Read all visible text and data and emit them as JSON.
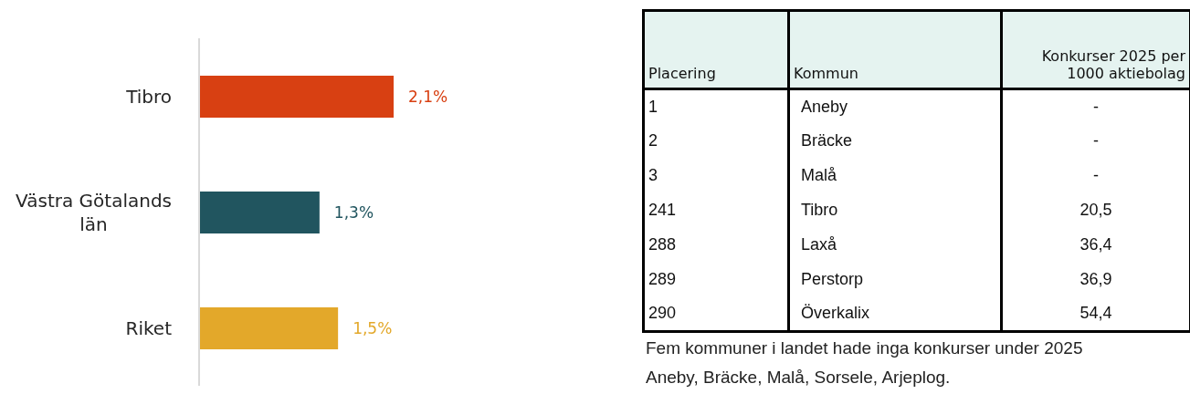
{
  "chart_data": [
    {
      "type": "bar",
      "orientation": "horizontal",
      "categories": [
        "Tibro",
        "Västra Götalands län",
        "Riket"
      ],
      "values": [
        2.1,
        1.3,
        1.5
      ],
      "colors": [
        "#d84012",
        "#21555f",
        "#e3a82a"
      ],
      "value_labels": [
        "2,1%",
        "1,3%",
        "1,5%"
      ]
    },
    {
      "type": "other",
      "categories": [
        "Placering",
        "Kommun",
        "Konkurser 2025 per 1000 aktiebolag"
      ],
      "cell_labels": [
        [
          "1",
          "Aneby",
          "-"
        ],
        [
          "2",
          "Bräcke",
          "-"
        ],
        [
          "3",
          "Malå",
          "-"
        ],
        [
          "241",
          "Tibro",
          "20,5"
        ],
        [
          "288",
          "Laxå",
          "36,4"
        ],
        [
          "289",
          "Perstorp",
          "36,9"
        ],
        [
          "290",
          "Överkalix",
          "54,4"
        ]
      ],
      "annotations": [
        "Fem kommuner i landet hade inga konkurser under 2025",
        "Aneby, Bräcke, Malå, Sorsele, Arjeplog."
      ]
    }
  ]
}
